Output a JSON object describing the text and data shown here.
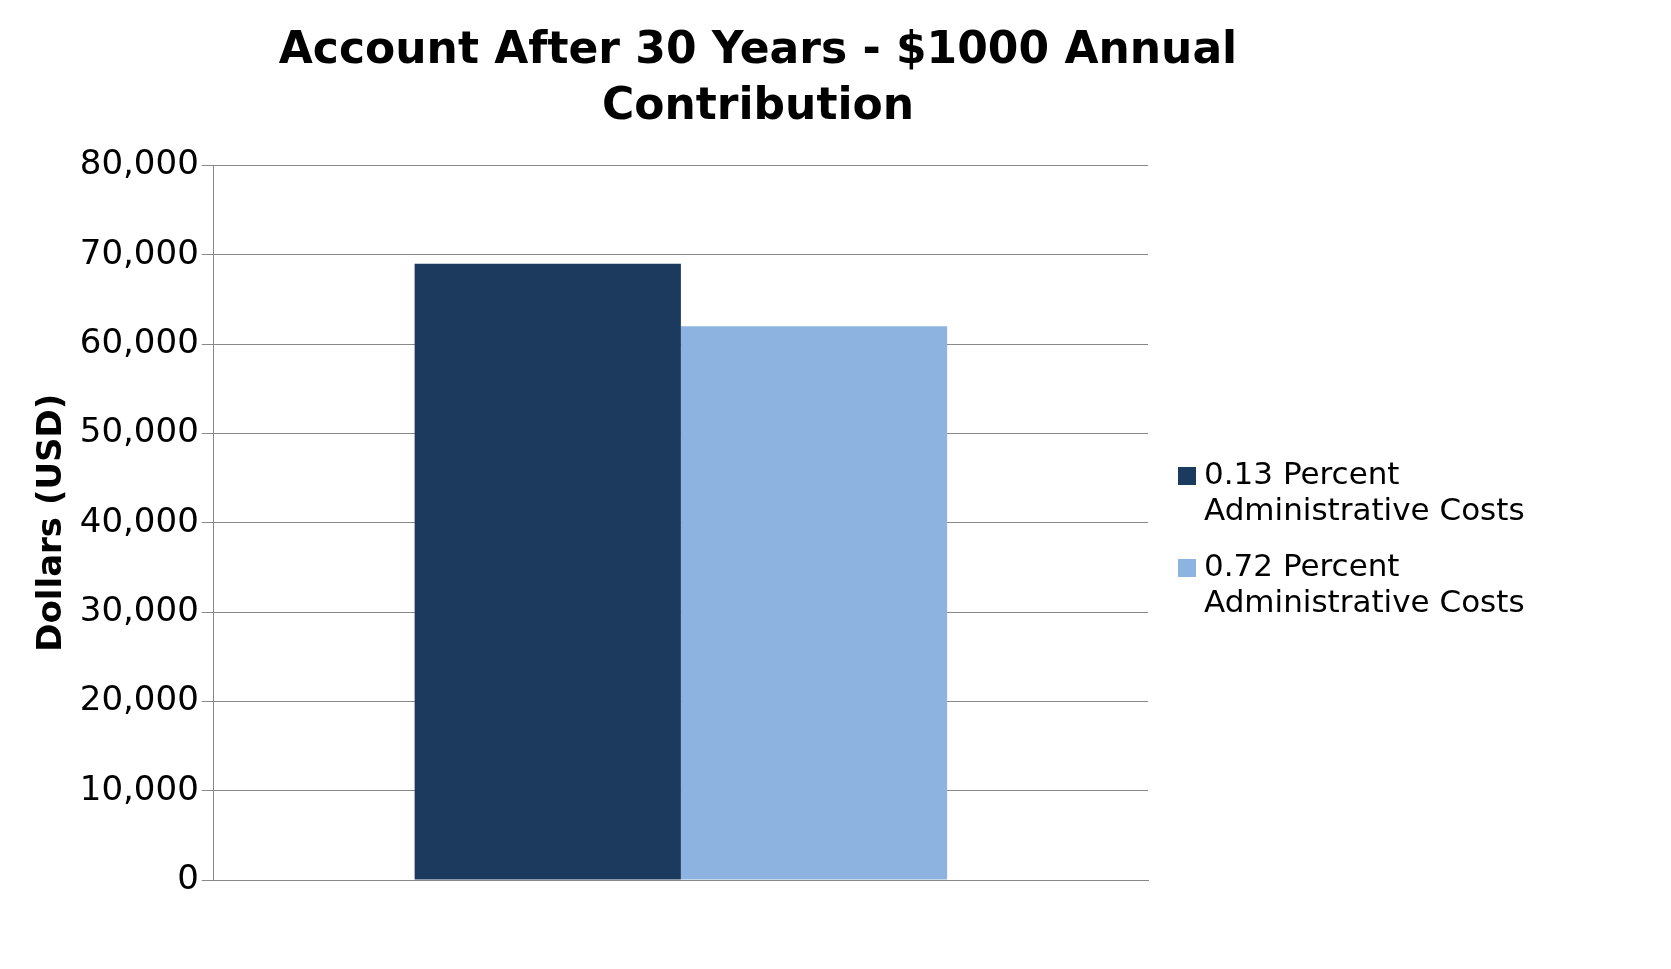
{
  "chart_data": {
    "type": "bar",
    "title": "Account After 30 Years - $1000 Annual Contribution",
    "ylabel": "Dollars (USD)",
    "categories": [
      null
    ],
    "series": [
      {
        "name": "0.13 Percent Administrative Costs",
        "color": "#1b3a5e",
        "values": [
          69000
        ]
      },
      {
        "name": "0.72 Percent Administrative Costs",
        "color": "#8db4e0",
        "values": [
          62000
        ]
      }
    ],
    "ylim": [
      0,
      80000
    ],
    "yticks": [
      {
        "value": 0,
        "label": "0"
      },
      {
        "value": 10000,
        "label": "10,000"
      },
      {
        "value": 20000,
        "label": "20,000"
      },
      {
        "value": 30000,
        "label": "30,000"
      },
      {
        "value": 40000,
        "label": "40,000"
      },
      {
        "value": 50000,
        "label": "50,000"
      },
      {
        "value": 60000,
        "label": "60,000"
      },
      {
        "value": 70000,
        "label": "70,000"
      },
      {
        "value": 80000,
        "label": "80,000"
      }
    ],
    "grid": "y",
    "legend": "right"
  }
}
